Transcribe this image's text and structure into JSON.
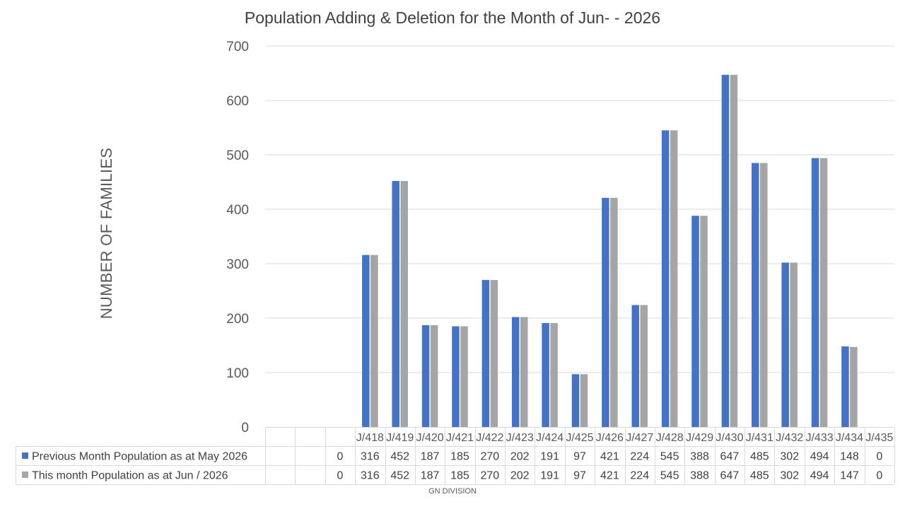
{
  "chart_data": {
    "type": "bar",
    "title": "Population Adding & Deletion for the Month of Jun- - 2026",
    "ylabel": "NUMBER OF FAMILIES",
    "xlabel": "GN DIVISION",
    "ylim": [
      0,
      700
    ],
    "yticks": [
      0,
      100,
      200,
      300,
      400,
      500,
      600,
      700
    ],
    "grid": true,
    "legend": "data-table-left",
    "categories": [
      "",
      "",
      "",
      "J/418",
      "J/419",
      "J/420",
      "J/421",
      "J/422",
      "J/423",
      "J/424",
      "J/425",
      "J/426",
      "J/427",
      "J/428",
      "J/429",
      "J/430",
      "J/431",
      "J/432",
      "J/433",
      "J/434",
      "J/435"
    ],
    "series": [
      {
        "name": "Previous Month Population as at May 2026",
        "color": "#4472C4",
        "values": [
          null,
          null,
          0,
          316,
          452,
          187,
          185,
          270,
          202,
          191,
          97,
          421,
          224,
          545,
          388,
          647,
          485,
          302,
          494,
          148,
          0
        ]
      },
      {
        "name": "This month Population as at Jun / 2026",
        "color": "#A5A5A5",
        "values": [
          null,
          null,
          0,
          316,
          452,
          187,
          185,
          270,
          202,
          191,
          97,
          421,
          224,
          545,
          388,
          647,
          485,
          302,
          494,
          147,
          0
        ]
      }
    ]
  }
}
